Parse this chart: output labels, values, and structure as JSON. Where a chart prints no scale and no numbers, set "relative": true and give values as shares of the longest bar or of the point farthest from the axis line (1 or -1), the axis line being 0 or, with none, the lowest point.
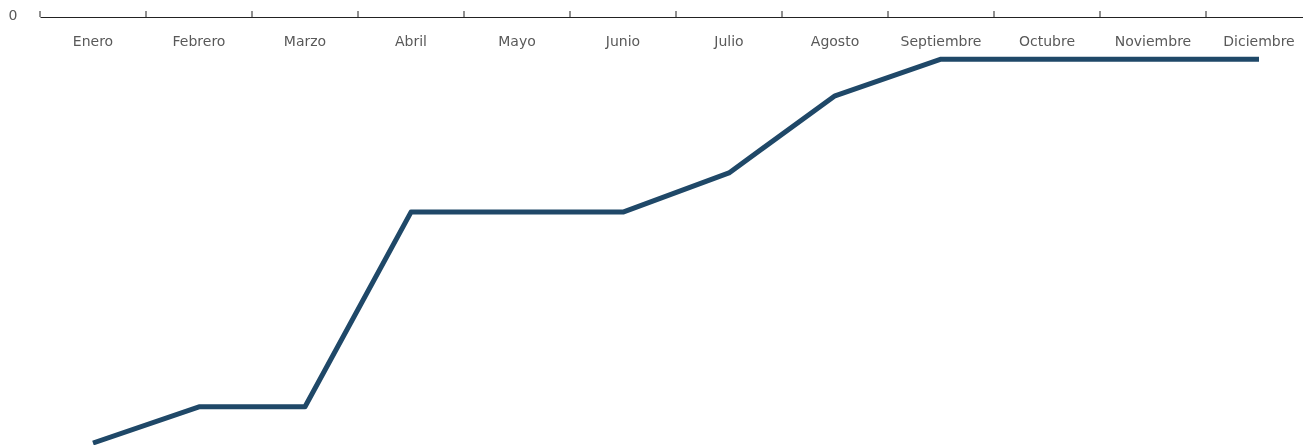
{
  "chart_data": {
    "type": "line",
    "relative": true,
    "categories": [
      "Enero",
      "Febrero",
      "Marzo",
      "Abril",
      "Mayo",
      "Junio",
      "Julio",
      "Agosto",
      "Septiembre",
      "Octubre",
      "Noviembre",
      "Diciembre"
    ],
    "series": [
      {
        "color": "#1f4868",
        "values": [
          -1,
          -0.915,
          -0.915,
          -0.458,
          -0.458,
          -0.458,
          -0.366,
          -0.185,
          -0.099,
          -0.099,
          -0.099,
          -0.099
        ]
      }
    ],
    "annotations": [
      "0"
    ]
  }
}
